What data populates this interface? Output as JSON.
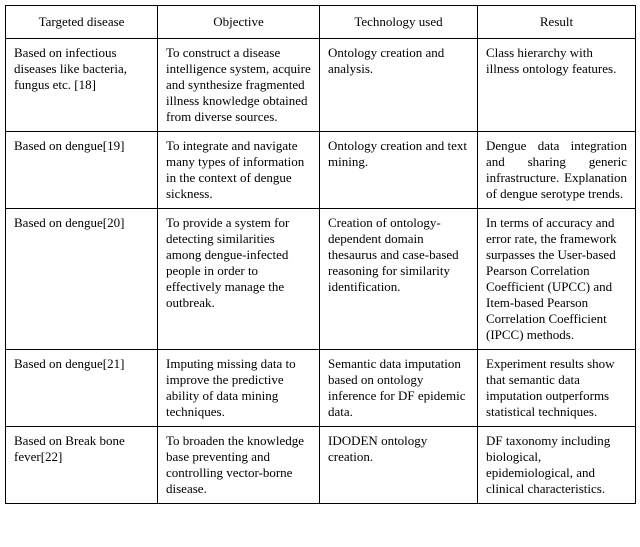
{
  "table": {
    "columns": [
      "Targeted disease",
      "Objective",
      "Technology used",
      "Result"
    ],
    "column_align": [
      "left",
      "left",
      "left",
      "left"
    ],
    "header_align": "center",
    "border_color": "#000000",
    "background_color": "#ffffff",
    "text_color": "#000000",
    "font_family": "Times New Roman",
    "font_size_pt": 10,
    "rows": [
      {
        "targeted": " Based on infectious diseases like bacteria, fungus etc.  [18]",
        "objective": "To construct a disease intelligence system, acquire and synthesize fragmented illness knowledge obtained from diverse sources.",
        "technology": "Ontology creation and analysis.",
        "result": "Class hierarchy with illness ontology features.",
        "result_justify": false
      },
      {
        "targeted": "Based on dengue[19]",
        "objective": "To integrate and navigate many types of information in the context of dengue sickness.",
        "technology": "Ontology creation and text mining.",
        "result": "Dengue data integration and sharing generic infrastructure. Explanation of dengue serotype trends.",
        "result_justify": true
      },
      {
        "targeted": "Based on dengue[20]",
        "objective": "To provide a system for detecting similarities among dengue-infected people in order to effectively manage the outbreak.",
        "technology": "Creation of ontology-dependent domain thesaurus and case-based reasoning for similarity identification.",
        "result": "In terms of accuracy and error rate, the framework surpasses the User-based Pearson Correlation Coefficient (UPCC) and Item-based Pearson Correlation Coefficient (IPCC) methods.",
        "result_justify": false
      },
      {
        "targeted": "Based on dengue[21]",
        "objective": "Imputing missing data to improve the predictive ability of data mining techniques.",
        "technology": "Semantic data imputation based on ontology inference for DF epidemic data.",
        "result": "Experiment results show that semantic data imputation outperforms statistical techniques.",
        "result_justify": false
      },
      {
        "targeted": "Based on Break bone fever[22]",
        "objective": "To broaden the knowledge base preventing and controlling vector-borne disease.",
        "technology": "IDODEN ontology creation.",
        "result": "DF taxonomy including biological, epidemiological, and clinical characteristics.",
        "result_justify": false
      }
    ]
  }
}
